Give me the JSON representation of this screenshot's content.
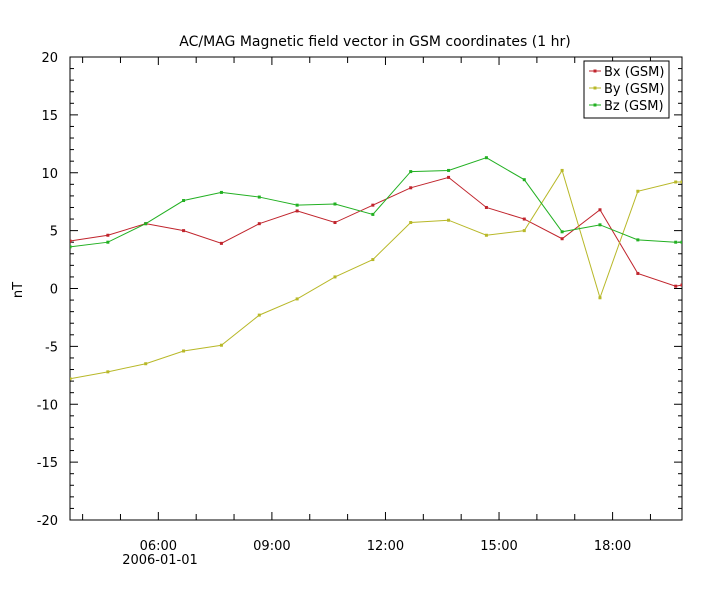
{
  "chart_data": {
    "type": "line",
    "title": "AC/MAG  Magnetic field vector in GSM coordinates (1 hr)",
    "ylabel": "nT",
    "xlabel": "",
    "date_label": "2006-01-01",
    "ylim": [
      -20,
      20
    ],
    "xlim": [
      "03:40",
      "19:50"
    ],
    "yticks": [
      -20,
      -15,
      -10,
      -5,
      0,
      5,
      10,
      15,
      20
    ],
    "xticks": [
      "06:00",
      "09:00",
      "12:00",
      "15:00",
      "18:00"
    ],
    "grid": false,
    "legend_position": "top-right",
    "x": [
      "03:40",
      "04:40",
      "05:40",
      "06:40",
      "07:40",
      "08:40",
      "09:40",
      "10:40",
      "11:40",
      "12:40",
      "13:40",
      "14:40",
      "15:40",
      "16:40",
      "17:40",
      "18:40",
      "19:40",
      "19:50"
    ],
    "series": [
      {
        "name": "Bx (GSM)",
        "color": "#c0242c",
        "values": [
          4.1,
          4.6,
          5.6,
          5.0,
          3.9,
          5.6,
          6.7,
          5.7,
          7.2,
          8.7,
          9.6,
          7.0,
          6.0,
          4.3,
          6.8,
          1.3,
          0.2,
          0.3
        ]
      },
      {
        "name": "By (GSM)",
        "color": "#b8b828",
        "values": [
          -7.8,
          -7.2,
          -6.5,
          -5.4,
          -4.9,
          -2.3,
          -0.9,
          1.0,
          2.5,
          5.7,
          5.9,
          4.6,
          5.0,
          10.2,
          -0.8,
          8.4,
          9.2,
          9.2
        ]
      },
      {
        "name": "Bz (GSM)",
        "color": "#22b022",
        "values": [
          3.6,
          4.0,
          5.6,
          7.6,
          8.3,
          7.9,
          7.2,
          7.3,
          6.4,
          10.1,
          10.2,
          11.3,
          9.4,
          4.9,
          5.5,
          4.2,
          4.0,
          4.0
        ]
      }
    ]
  }
}
